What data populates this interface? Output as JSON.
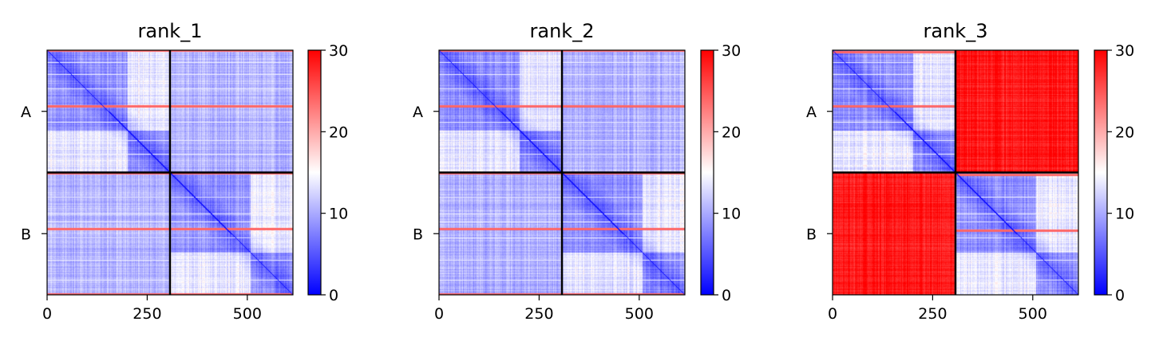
{
  "chart_data": [
    {
      "type": "heatmap",
      "title": "rank_1",
      "xlim": [
        0,
        614
      ],
      "ylim": [
        614,
        0
      ],
      "xticks": [
        0,
        250,
        500
      ],
      "yticks": [
        {
          "label": "A",
          "value": 153.5
        },
        {
          "label": "B",
          "value": 460.5
        }
      ],
      "chain_boundary": 307,
      "colorbar": {
        "min": 0,
        "max": 30,
        "ticks": [
          0,
          10,
          20,
          30
        ],
        "colormap": "bwr"
      },
      "blocks": {
        "intra_chain_mean": 4,
        "inter_chain_mean": 9
      },
      "high_value_rows": [
        0,
        140,
        307,
        447,
        612
      ],
      "low_value_rows": [
        30,
        60,
        95,
        180,
        225,
        260,
        367,
        410,
        430,
        470,
        525,
        575
      ]
    },
    {
      "type": "heatmap",
      "title": "rank_2",
      "xlim": [
        0,
        614
      ],
      "ylim": [
        614,
        0
      ],
      "xticks": [
        0,
        250,
        500
      ],
      "yticks": [
        {
          "label": "A",
          "value": 153.5
        },
        {
          "label": "B",
          "value": 460.5
        }
      ],
      "chain_boundary": 307,
      "colorbar": {
        "min": 0,
        "max": 30,
        "ticks": [
          0,
          10,
          20,
          30
        ],
        "colormap": "bwr"
      },
      "blocks": {
        "intra_chain_mean": 4,
        "inter_chain_mean": 9
      },
      "high_value_rows": [
        0,
        140,
        307,
        447,
        612
      ],
      "low_value_rows": [
        30,
        60,
        95,
        180,
        225,
        260,
        367,
        410,
        430,
        470,
        525,
        575
      ]
    },
    {
      "type": "heatmap",
      "title": "rank_3",
      "xlim": [
        0,
        614
      ],
      "ylim": [
        614,
        0
      ],
      "xticks": [
        0,
        250,
        500
      ],
      "yticks": [
        {
          "label": "A",
          "value": 153.5
        },
        {
          "label": "B",
          "value": 460.5
        }
      ],
      "chain_boundary": 307,
      "colorbar": {
        "min": 0,
        "max": 30,
        "ticks": [
          0,
          10,
          20,
          30
        ],
        "colormap": "bwr"
      },
      "blocks": {
        "intra_chain_mean": 4,
        "inter_chain_mean": 27
      },
      "high_value_rows": [
        4,
        140,
        312,
        452
      ],
      "low_value_rows": [
        30,
        60,
        95,
        180,
        225,
        260,
        367,
        410,
        430,
        470,
        525,
        575
      ]
    }
  ]
}
